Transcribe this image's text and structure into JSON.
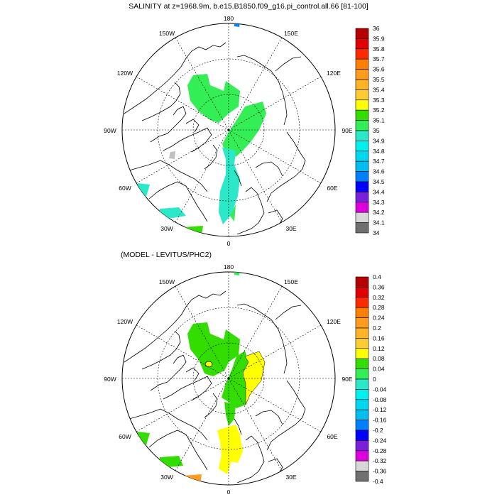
{
  "panels": {
    "top": {
      "title": "SALINITY at z=1968.9m, b.e15.B1850.f09_g16.pi_control.all.66 [81-100]",
      "colorbar": {
        "labels": [
          "36",
          "35.9",
          "35.8",
          "35.7",
          "35.6",
          "35.5",
          "35.4",
          "35.3",
          "35.2",
          "35.1",
          "35",
          "34.9",
          "34.8",
          "34.7",
          "34.6",
          "34.5",
          "34.4",
          "34.3",
          "34.2",
          "34.1",
          "34"
        ]
      }
    },
    "bottom": {
      "title": "(MODEL - LEVITUS/PHC2)",
      "colorbar": {
        "labels": [
          "0.4",
          "0.36",
          "0.32",
          "0.28",
          "0.24",
          "0.2",
          "0.16",
          "0.12",
          "0.08",
          "0.04",
          "0",
          "-0.04",
          "-0.08",
          "-0.12",
          "-0.16",
          "-0.2",
          "-0.24",
          "-0.28",
          "-0.32",
          "-0.36",
          "-0.4"
        ]
      }
    }
  },
  "longitude_labels": {
    "lon180": "180",
    "lon150w": "150W",
    "lon150e": "150E",
    "lon120w": "120W",
    "lon120e": "120E",
    "lon90w": "90W",
    "lon90e": "90E",
    "lon60w": "60W",
    "lon60e": "60E",
    "lon30w": "30W",
    "lon30e": "30E",
    "lon0": "0"
  },
  "colors": {
    "colorbar_swatches": [
      "#b40000",
      "#e00000",
      "#ff2a00",
      "#ff8000",
      "#ff9c1e",
      "#ffb428",
      "#ffcc33",
      "#ffff00",
      "#33dd00",
      "#33ee55",
      "#2be8c8",
      "#00f0f0",
      "#00d8f0",
      "#00bef0",
      "#0080ff",
      "#0000ff",
      "#7a20dd",
      "#dd00dd",
      "#d8d8d8",
      "#707070"
    ],
    "land_line": "#000000",
    "grid_line": "#000000"
  }
}
